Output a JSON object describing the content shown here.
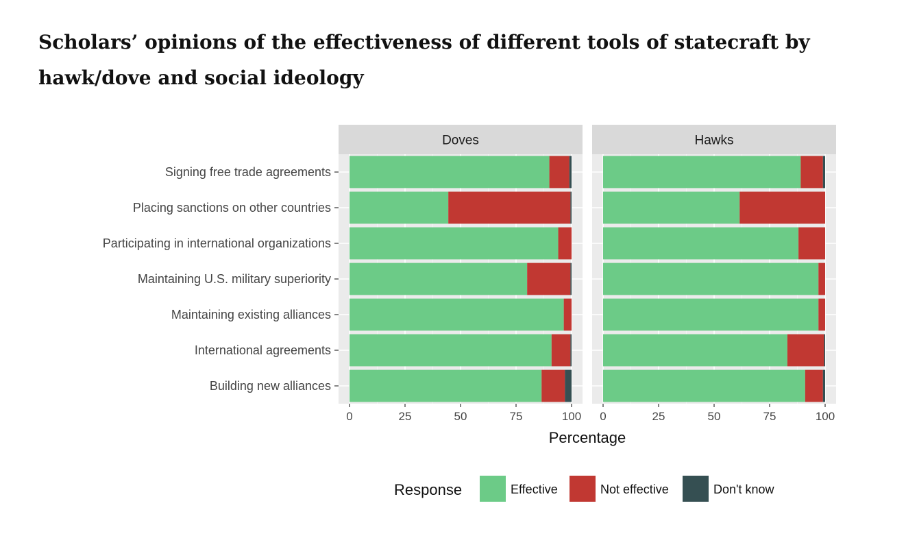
{
  "title": "Scholars’ opinions of the effectiveness of different tools of statecraft by hawk/dove and social ideology",
  "chart_data": {
    "type": "bar",
    "orientation": "horizontal",
    "stacked": true,
    "xlabel": "Percentage",
    "ylabel": "",
    "xlim": [
      0,
      100
    ],
    "xticks": [
      0,
      25,
      50,
      75,
      100
    ],
    "categories": [
      "Signing free trade agreements",
      "Placing sanctions on other countries",
      "Participating in international organizations",
      "Maintaining U.S. military superiority",
      "Maintaining existing alliances",
      "International agreements",
      "Building new alliances"
    ],
    "legend": {
      "title": "Response",
      "placement": "bottom",
      "entries": [
        {
          "label": "Effective",
          "color": "#6ccb87"
        },
        {
          "label": "Not effective",
          "color": "#c13832"
        },
        {
          "label": "Don't know",
          "color": "#354f52"
        }
      ]
    },
    "panels": [
      {
        "name": "Doves",
        "series": [
          {
            "name": "Effective",
            "values": [
              90,
              44.5,
              94,
              80,
              96.5,
              91,
              86.5
            ]
          },
          {
            "name": "Not effective",
            "values": [
              9,
              55,
              6,
              19.5,
              3.5,
              8.5,
              10.5
            ]
          },
          {
            "name": "Don't know",
            "values": [
              1,
              0.5,
              0,
              0.5,
              0,
              0.5,
              3
            ]
          }
        ]
      },
      {
        "name": "Hawks",
        "series": [
          {
            "name": "Effective",
            "values": [
              89,
              61.5,
              88,
              97,
              97,
              83,
              91
            ]
          },
          {
            "name": "Not effective",
            "values": [
              10,
              38.5,
              12,
              3,
              3,
              16.5,
              8
            ]
          },
          {
            "name": "Don't know",
            "values": [
              1,
              0,
              0,
              0,
              0,
              0.5,
              1
            ]
          }
        ]
      }
    ],
    "grid": true
  }
}
